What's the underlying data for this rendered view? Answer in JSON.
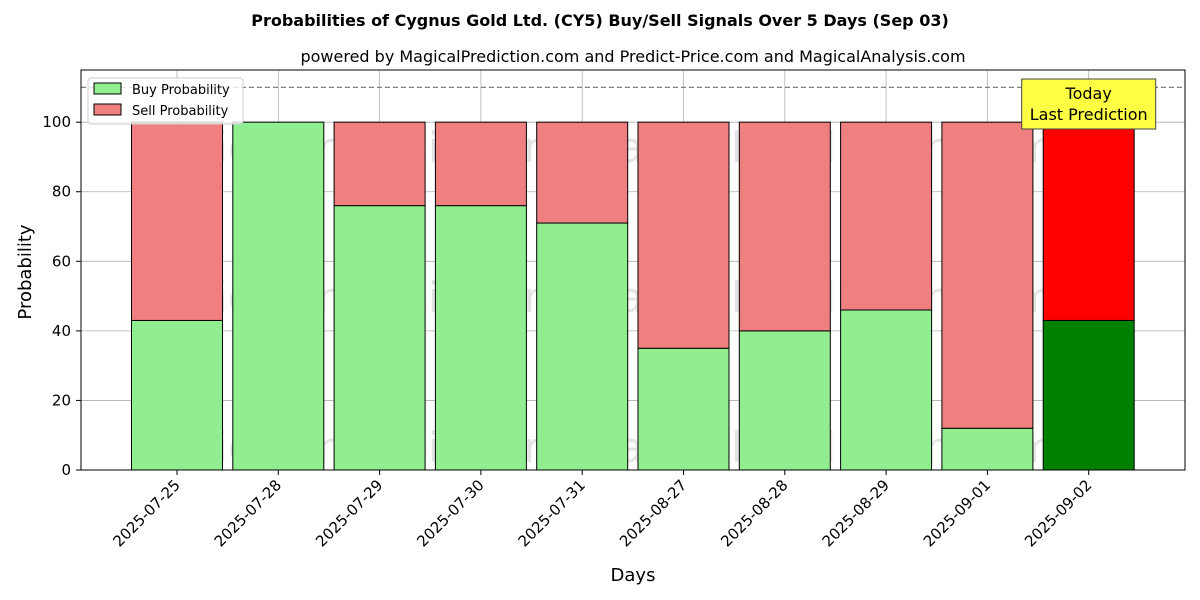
{
  "chart_data": {
    "type": "bar",
    "stacked": true,
    "title": "Probabilities of Cygnus Gold Ltd. (CY5) Buy/Sell Signals Over 5 Days (Sep 03)",
    "subtitle": "powered by MagicalPrediction.com and Predict-Price.com and MagicalAnalysis.com",
    "xlabel": "Days",
    "ylabel": "Probability",
    "ylim": [
      0,
      115
    ],
    "yticks": [
      0,
      20,
      40,
      60,
      80,
      100
    ],
    "grid": true,
    "legend_position": "top-left",
    "categories": [
      "2025-07-25",
      "2025-07-28",
      "2025-07-29",
      "2025-07-30",
      "2025-07-31",
      "2025-08-27",
      "2025-08-28",
      "2025-08-29",
      "2025-09-01",
      "2025-09-02"
    ],
    "series": [
      {
        "name": "Buy Probability",
        "color": "#90ee90",
        "values": [
          43,
          100,
          76,
          76,
          71,
          35,
          40,
          46,
          12,
          43
        ]
      },
      {
        "name": "Sell Probability",
        "color": "#f08080",
        "values": [
          57,
          0,
          24,
          24,
          29,
          65,
          60,
          54,
          88,
          57
        ]
      }
    ],
    "highlight": {
      "index": 9,
      "buy_color": "#008000",
      "sell_color": "#ff0000"
    },
    "reference_line": {
      "y": 110,
      "style": "dashed",
      "color": "#808080"
    },
    "annotation": {
      "lines": [
        "Today",
        "Last Prediction"
      ],
      "background": "#ffff44",
      "category_index": 9
    },
    "watermarks": [
      "MagicalAnalysis.com",
      "MagicalPrediction.com"
    ]
  }
}
